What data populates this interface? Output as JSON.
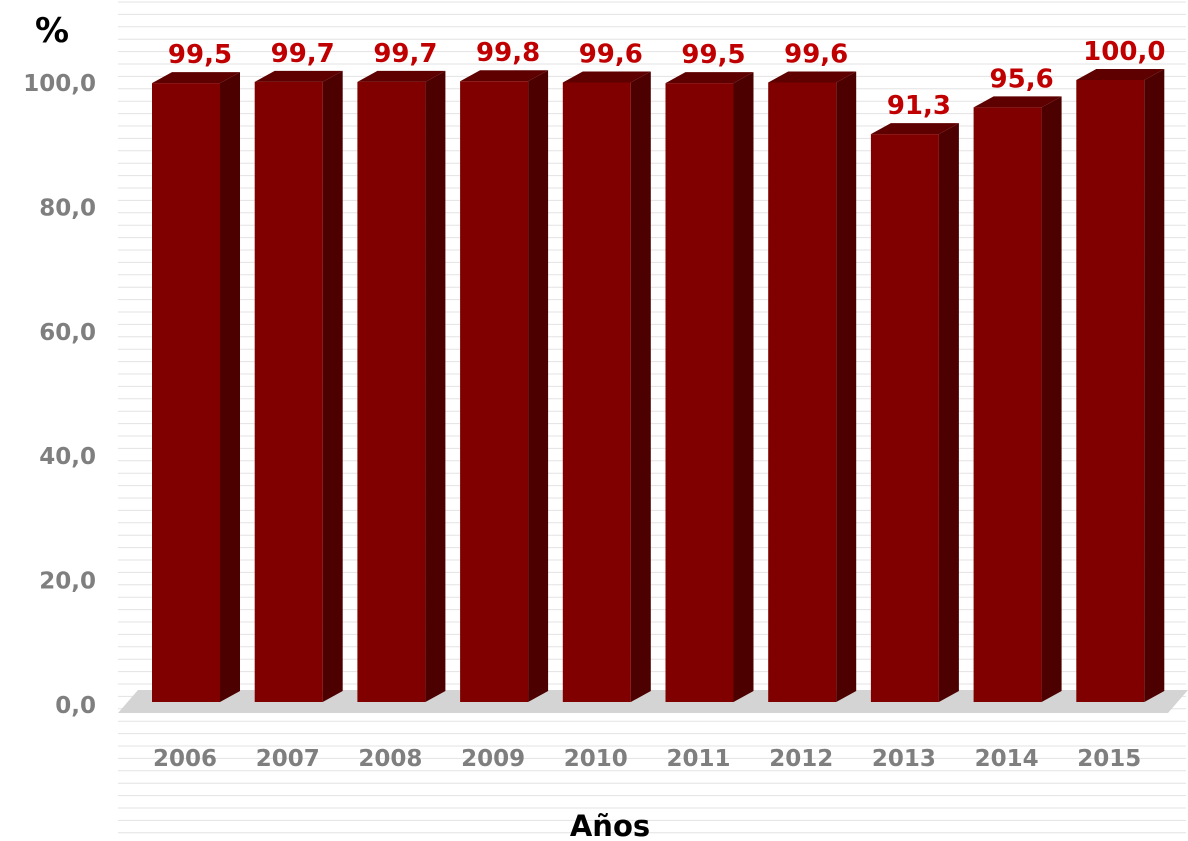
{
  "chart_data": {
    "type": "bar",
    "title": "",
    "ylabel": "%",
    "xlabel": "Años",
    "categories": [
      "2006",
      "2007",
      "2008",
      "2009",
      "2010",
      "2011",
      "2012",
      "2013",
      "2014",
      "2015"
    ],
    "values": [
      99.5,
      99.7,
      99.7,
      99.8,
      99.6,
      99.5,
      99.6,
      91.3,
      95.6,
      100.0
    ],
    "data_labels": [
      "99,5",
      "99,7",
      "99,7",
      "99,8",
      "99,6",
      "99,5",
      "99,6",
      "91,3",
      "95,6",
      "100,0"
    ],
    "y_ticks": [
      0,
      20,
      40,
      60,
      80,
      100
    ],
    "y_tick_labels": [
      "0,0",
      "20,0",
      "40,0",
      "60,0",
      "80,0",
      "100,0"
    ],
    "ylim": [
      0,
      100
    ],
    "grid": true,
    "legend": "none",
    "colors": {
      "bar_front": "#800000",
      "bar_side": "#4d0000",
      "bar_top": "#5e0000",
      "data_label": "#c00000",
      "grid": "#e3e3e3",
      "floor": "#d4d4d4"
    }
  }
}
